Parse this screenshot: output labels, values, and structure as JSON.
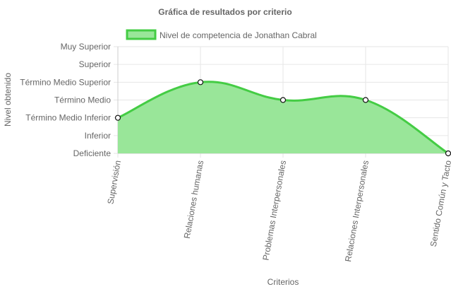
{
  "chart_data": {
    "type": "area",
    "title": "Gráfica de resultados por criterio",
    "xlabel": "Criterios",
    "ylabel": "Nivel obtenido",
    "y_levels": [
      "Deficiente",
      "Inferior",
      "Término Medio Inferior",
      "Término Medio",
      "Término Medio Superior",
      "Superior",
      "Muy Superior"
    ],
    "categories": [
      "Supervisión",
      "Relaciones humanas",
      "Problemas Interpersonales",
      "Relaciones Interpersonales",
      "Sentido Común y Tacto"
    ],
    "series": [
      {
        "name": "Nivel de competencia de Jonathan Cabral",
        "values": [
          2,
          4,
          3,
          3,
          0
        ],
        "value_labels": [
          "Término Medio Inferior",
          "Término Medio Superior",
          "Término Medio",
          "Término Medio",
          "Deficiente"
        ]
      }
    ],
    "ylim": [
      0,
      6
    ],
    "grid": true,
    "legend": "top",
    "colors": {
      "line": "#44cc44",
      "fill": "#99e699",
      "grid": "#e6e6e6",
      "axis_text": "#666666"
    }
  }
}
